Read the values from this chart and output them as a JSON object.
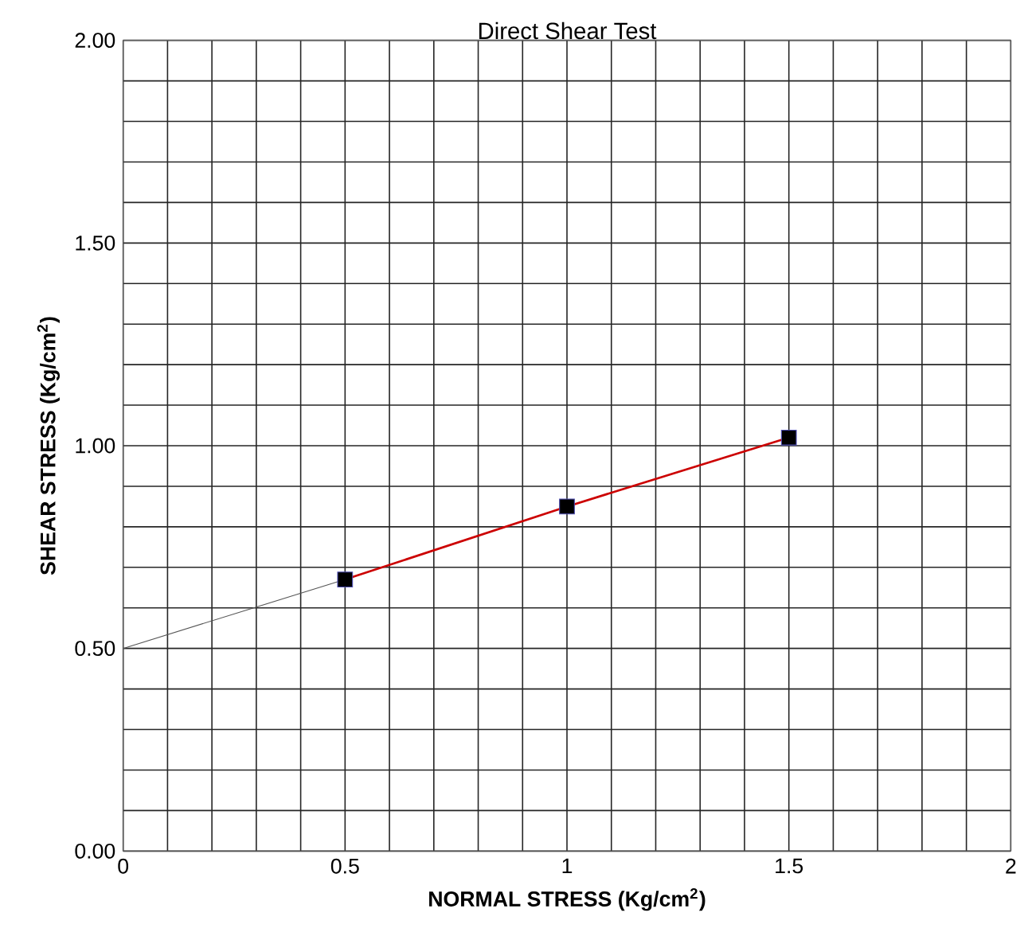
{
  "chart_data": {
    "type": "line",
    "title": "Direct Shear Test",
    "xlabel": "**NORMAL STRESS (Kg/cm$^{2}$)**",
    "ylabel": "**SHEAR STRESS (Kg/cm$^{2}$)**",
    "xlim": [
      0,
      2
    ],
    "ylim": [
      0,
      2
    ],
    "xticks": [
      0,
      {
        "value": 0.1,
        "label": null
      },
      {
        "value": 0.2,
        "label": null
      },
      {
        "value": 0.3,
        "label": null
      },
      {
        "value": 0.4,
        "label": null
      },
      0.5,
      {
        "value": 0.6,
        "label": null
      },
      {
        "value": 0.7,
        "label": null
      },
      {
        "value": 0.8,
        "label": null
      },
      {
        "value": 0.9,
        "label": null
      },
      1,
      {
        "value": 1.1,
        "label": null
      },
      {
        "value": 1.2,
        "label": null
      },
      {
        "value": 1.3,
        "label": null
      },
      {
        "value": 1.4,
        "label": null
      },
      1.5,
      {
        "value": 1.6,
        "label": null
      },
      {
        "value": 1.7,
        "label": null
      },
      {
        "value": 1.8,
        "label": null
      },
      {
        "value": 1.9,
        "label": null
      },
      2
    ],
    "yticks": [
      {
        "value": 0,
        "label": "0.00"
      },
      {
        "value": 0.1,
        "label": null
      },
      {
        "value": 0.2,
        "label": null
      },
      {
        "value": 0.3,
        "label": null
      },
      {
        "value": 0.4,
        "label": null
      },
      {
        "value": 0.5,
        "label": "0.50"
      },
      {
        "value": 0.6,
        "label": null
      },
      {
        "value": 0.7,
        "label": null
      },
      {
        "value": 0.8,
        "label": null
      },
      {
        "value": 0.9,
        "label": null
      },
      {
        "value": 1,
        "label": "1.00"
      },
      {
        "value": 1.1,
        "label": null
      },
      {
        "value": 1.2,
        "label": null
      },
      {
        "value": 1.3,
        "label": null
      },
      {
        "value": 1.4,
        "label": null
      },
      {
        "value": 1.5,
        "label": "1.50"
      },
      {
        "value": 1.6,
        "label": null
      },
      {
        "value": 1.7,
        "label": null
      },
      {
        "value": 1.8,
        "label": null
      },
      {
        "value": 1.9,
        "label": null
      },
      {
        "value": 2,
        "label": "2.00"
      }
    ],
    "grid": true,
    "series": [
      {
        "color": "#555555",
        "x": [
          0,
          0.5
        ],
        "values": [
          0.5,
          0.67
        ],
        "marker": "none"
      },
      {
        "color": "#cc0000",
        "x": [
          0.5,
          1,
          1.5
        ],
        "values": [
          0.67,
          0.85,
          1.02
        ],
        "marker": "none"
      },
      {
        "type": "scatter",
        "color": "#000000",
        "x": [
          0.5,
          1,
          1.5
        ],
        "values": [
          0.67,
          0.85,
          1.02
        ],
        "marker": "square"
      }
    ]
  }
}
